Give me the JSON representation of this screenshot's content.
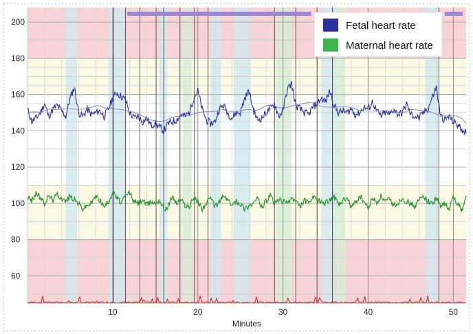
{
  "chart_data": {
    "type": "line",
    "title": "",
    "xlabel": "Minutes",
    "ylabel": "",
    "xlim": [
      0,
      51.5
    ],
    "ylim": [
      45,
      208
    ],
    "x_ticks": [
      10,
      20,
      30,
      40,
      50
    ],
    "y_ticks": [
      60,
      80,
      100,
      120,
      140,
      160,
      180,
      200
    ],
    "grid": true,
    "legend_position": "top-right",
    "colors": {
      "fetal": "#2b2fa0",
      "maternal": "#1f8f2a",
      "pink_zone": "#f8d3d6",
      "yellow_zone": "#fbf8e4",
      "blue_band": "#cfe7ef",
      "green_band": "#d4ecd3",
      "purple_bar": "#9b86d6",
      "contraction": "#d61e1e"
    },
    "zones": [
      {
        "from": 180,
        "to": 208,
        "color": "pink"
      },
      {
        "from": 160,
        "to": 180,
        "color": "yellow"
      },
      {
        "from": 80,
        "to": 110,
        "color": "yellow"
      },
      {
        "from": 45,
        "to": 80,
        "color": "pink"
      }
    ],
    "shaded_bands": [
      {
        "start": 4.5,
        "end": 5.8,
        "color": "blue"
      },
      {
        "start": 9.5,
        "end": 11.5,
        "color": "blue"
      },
      {
        "start": 15.5,
        "end": 16.4,
        "color": "blue"
      },
      {
        "start": 18.2,
        "end": 19.3,
        "color": "green"
      },
      {
        "start": 21.5,
        "end": 22.7,
        "color": "blue"
      },
      {
        "start": 24.2,
        "end": 26.2,
        "color": "blue"
      },
      {
        "start": 29.2,
        "end": 31.0,
        "color": "green"
      },
      {
        "start": 34.5,
        "end": 36.2,
        "color": "blue"
      },
      {
        "start": 36.2,
        "end": 37.3,
        "color": "green"
      },
      {
        "start": 46.7,
        "end": 48.2,
        "color": "blue"
      }
    ],
    "event_lines": [
      10.1,
      11.5,
      13.2,
      15.1,
      16.0,
      17.9,
      19.6,
      21.2,
      29.0,
      31.5,
      34.0,
      35.8,
      48.3
    ],
    "marker_bars": [
      {
        "start": 11.7,
        "end": 33.3
      },
      {
        "start": 49.0,
        "end": 51.1
      }
    ],
    "series": [
      {
        "name": "Fetal heart rate",
        "x": [
          0,
          0.5,
          1,
          1.5,
          2,
          2.5,
          3,
          3.5,
          4,
          4.5,
          5,
          5.5,
          6,
          6.5,
          7,
          7.5,
          8,
          8.5,
          9,
          9.5,
          10,
          10.5,
          11,
          11.5,
          12,
          12.5,
          13,
          13.5,
          14,
          14.5,
          15,
          15.5,
          16,
          16.5,
          17,
          17.5,
          18,
          18.5,
          19,
          19.5,
          20,
          20.5,
          21,
          21.5,
          22,
          22.5,
          23,
          23.5,
          24,
          24.5,
          25,
          25.5,
          26,
          26.5,
          27,
          27.5,
          28,
          28.5,
          29,
          29.5,
          30,
          30.5,
          31,
          31.5,
          32,
          32.5,
          33,
          33.5,
          34,
          34.5,
          35,
          35.5,
          36,
          36.5,
          37,
          37.5,
          38,
          38.5,
          39,
          39.5,
          40,
          40.5,
          41,
          41.5,
          42,
          42.5,
          43,
          43.5,
          44,
          44.5,
          45,
          45.5,
          46,
          46.5,
          47,
          47.5,
          48,
          48.5,
          49,
          49.5,
          50,
          50.5,
          51,
          51.5
        ],
        "y": [
          152,
          145,
          147,
          150,
          155,
          148,
          152,
          154,
          151,
          148,
          158,
          164,
          150,
          148,
          152,
          149,
          150,
          151,
          148,
          152,
          158,
          161,
          159,
          157,
          150,
          147,
          148,
          145,
          147,
          143,
          144,
          142,
          140,
          144,
          145,
          146,
          149,
          148,
          150,
          158,
          162,
          152,
          146,
          144,
          145,
          152,
          154,
          150,
          147,
          150,
          150,
          158,
          162,
          152,
          146,
          147,
          150,
          152,
          155,
          148,
          151,
          163,
          166,
          154,
          152,
          150,
          149,
          153,
          155,
          158,
          156,
          162,
          154,
          150,
          151,
          150,
          152,
          149,
          150,
          153,
          152,
          156,
          151,
          148,
          150,
          149,
          152,
          149,
          150,
          155,
          149,
          148,
          147,
          150,
          152,
          158,
          164,
          148,
          146,
          148,
          145,
          143,
          141,
          139
        ]
      },
      {
        "name": "Maternal heart rate",
        "x": [
          0,
          0.5,
          1,
          1.5,
          2,
          2.5,
          3,
          3.5,
          4,
          4.5,
          5,
          5.5,
          6,
          6.5,
          7,
          7.5,
          8,
          8.5,
          9,
          9.5,
          10,
          10.5,
          11,
          11.5,
          12,
          12.5,
          13,
          13.5,
          14,
          14.5,
          15,
          15.5,
          16,
          16.5,
          17,
          17.5,
          18,
          18.5,
          19,
          19.5,
          20,
          20.5,
          21,
          21.5,
          22,
          22.5,
          23,
          23.5,
          24,
          24.5,
          25,
          25.5,
          26,
          26.5,
          27,
          27.5,
          28,
          28.5,
          29,
          29.5,
          30,
          30.5,
          31,
          31.5,
          32,
          32.5,
          33,
          33.5,
          34,
          34.5,
          35,
          35.5,
          36,
          36.5,
          37,
          37.5,
          38,
          38.5,
          39,
          39.5,
          40,
          40.5,
          41,
          41.5,
          42,
          42.5,
          43,
          43.5,
          44,
          44.5,
          45,
          45.5,
          46,
          46.5,
          47,
          47.5,
          48,
          48.5,
          49,
          49.5,
          50,
          50.5,
          51,
          51.5
        ],
        "y": [
          104,
          101,
          106,
          103,
          100,
          104,
          102,
          105,
          103,
          101,
          104,
          102,
          100,
          97,
          99,
          100,
          104,
          102,
          98,
          101,
          106,
          103,
          100,
          104,
          106,
          101,
          100,
          102,
          99,
          101,
          100,
          102,
          97,
          98,
          104,
          100,
          102,
          99,
          98,
          103,
          101,
          97,
          100,
          103,
          98,
          101,
          104,
          102,
          99,
          101,
          100,
          97,
          99,
          100,
          103,
          98,
          101,
          104,
          100,
          102,
          101,
          100,
          103,
          101,
          98,
          102,
          100,
          103,
          102,
          101,
          100,
          102,
          104,
          99,
          101,
          103,
          98,
          100,
          104,
          101,
          97,
          103,
          100,
          104,
          101,
          102,
          99,
          100,
          103,
          101,
          100,
          98,
          102,
          104,
          101,
          100,
          103,
          98,
          100,
          96,
          104,
          100,
          96,
          104
        ]
      }
    ]
  },
  "legend": {
    "fetal_label": "Fetal heart rate",
    "maternal_label": "Maternal heart rate"
  }
}
